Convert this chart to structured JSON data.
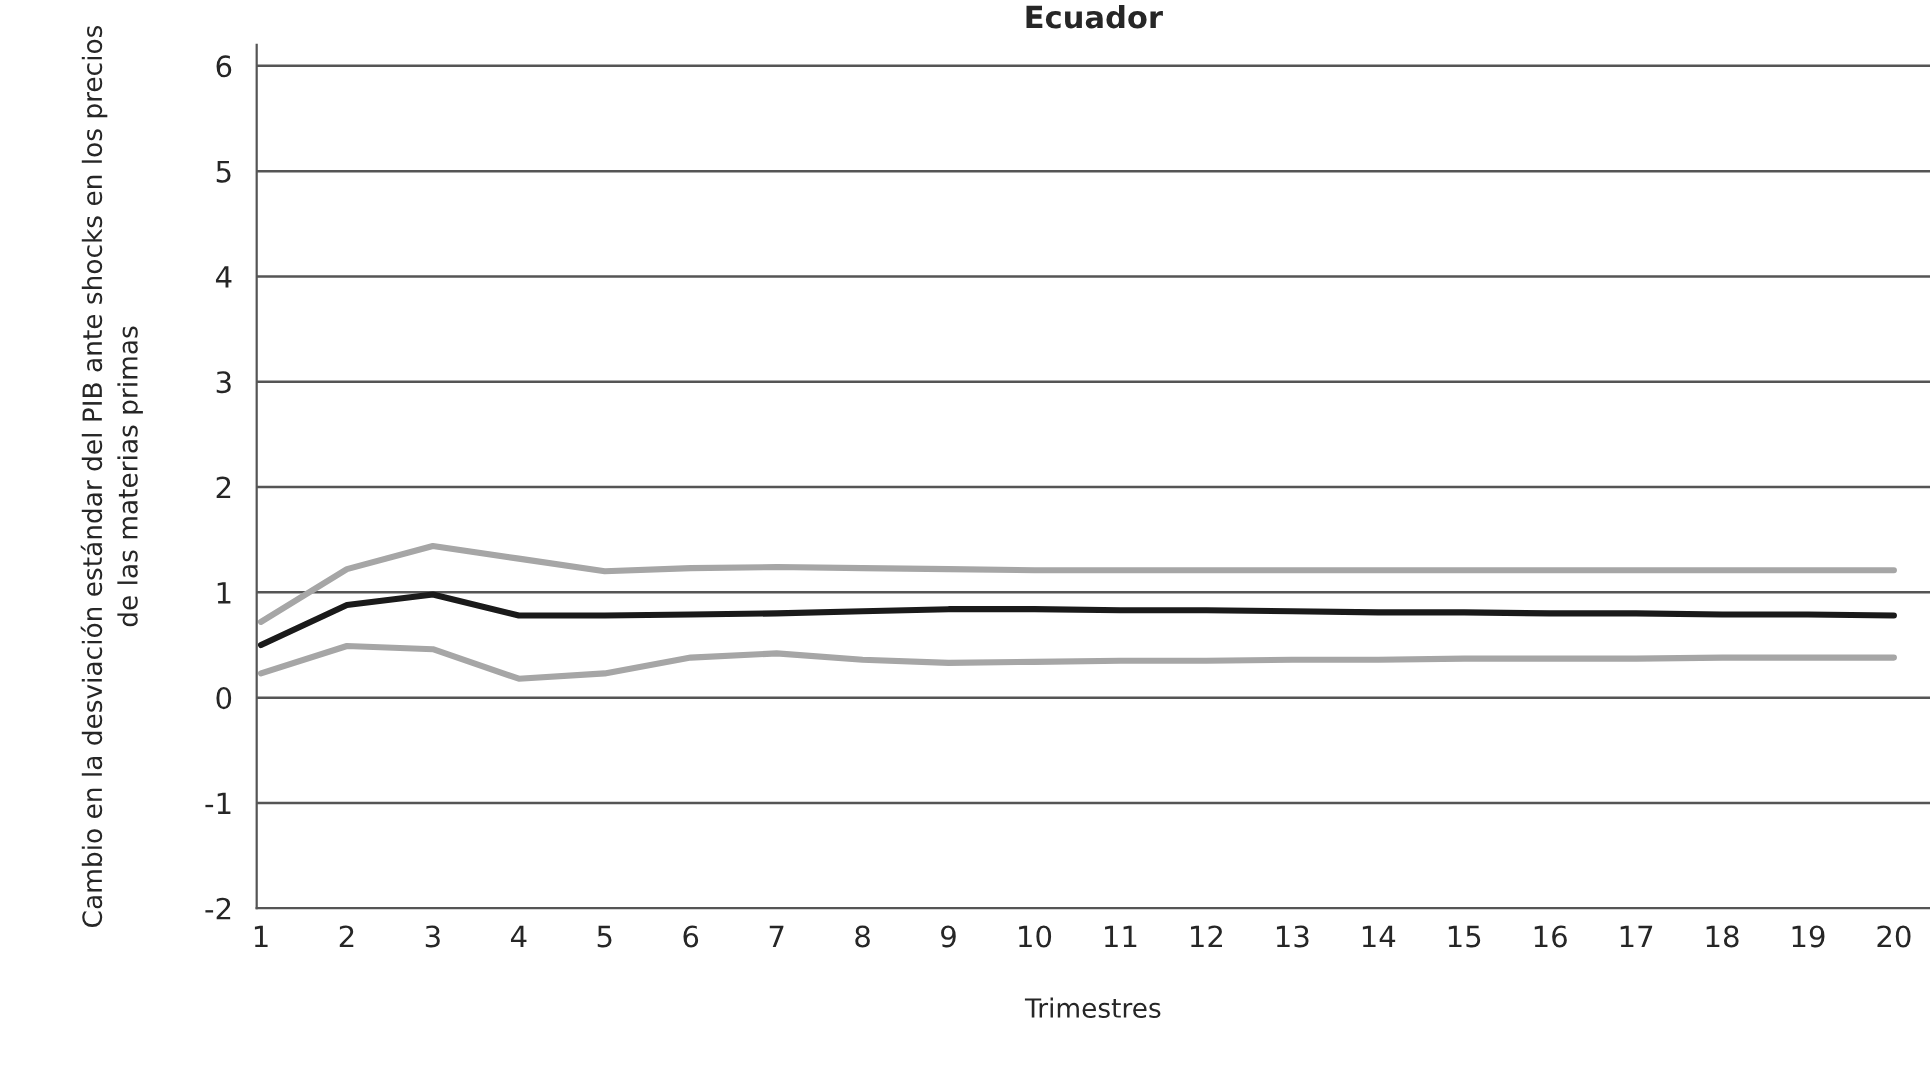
{
  "chart_data": {
    "type": "line",
    "title": "Ecuador",
    "xlabel": "Trimestres",
    "ylabel": "Cambio en la desviación estándar del PIB ante shocks en los precios\nde las materias primas",
    "x": [
      1,
      2,
      3,
      4,
      5,
      6,
      7,
      8,
      9,
      10,
      11,
      12,
      13,
      14,
      15,
      16,
      17,
      18,
      19,
      20
    ],
    "series": [
      {
        "color": "#a6a6a6",
        "values": [
          0.72,
          1.22,
          1.44,
          1.32,
          1.2,
          1.23,
          1.24,
          1.23,
          1.22,
          1.21,
          1.21,
          1.21,
          1.21,
          1.21,
          1.21,
          1.21,
          1.21,
          1.21,
          1.21,
          1.21
        ]
      },
      {
        "color": "#1a1a1a",
        "values": [
          0.5,
          0.88,
          0.98,
          0.78,
          0.78,
          0.79,
          0.8,
          0.82,
          0.84,
          0.84,
          0.83,
          0.83,
          0.82,
          0.81,
          0.81,
          0.8,
          0.8,
          0.79,
          0.79,
          0.78
        ]
      },
      {
        "color": "#a6a6a6",
        "values": [
          0.23,
          0.49,
          0.46,
          0.18,
          0.23,
          0.38,
          0.42,
          0.36,
          0.33,
          0.34,
          0.35,
          0.35,
          0.36,
          0.36,
          0.37,
          0.37,
          0.37,
          0.38,
          0.38,
          0.38
        ]
      }
    ],
    "xlim": [
      0.95,
      20.42
    ],
    "xticks": [
      1,
      2,
      3,
      4,
      5,
      6,
      7,
      8,
      9,
      10,
      11,
      12,
      13,
      14,
      15,
      16,
      17,
      18,
      19,
      20
    ],
    "ylim": [
      -2,
      6.2
    ],
    "yticks": [
      -2,
      -1,
      0,
      1,
      2,
      3,
      4,
      5,
      6
    ],
    "grid": "y",
    "marker": "none",
    "line_style": "solid"
  }
}
